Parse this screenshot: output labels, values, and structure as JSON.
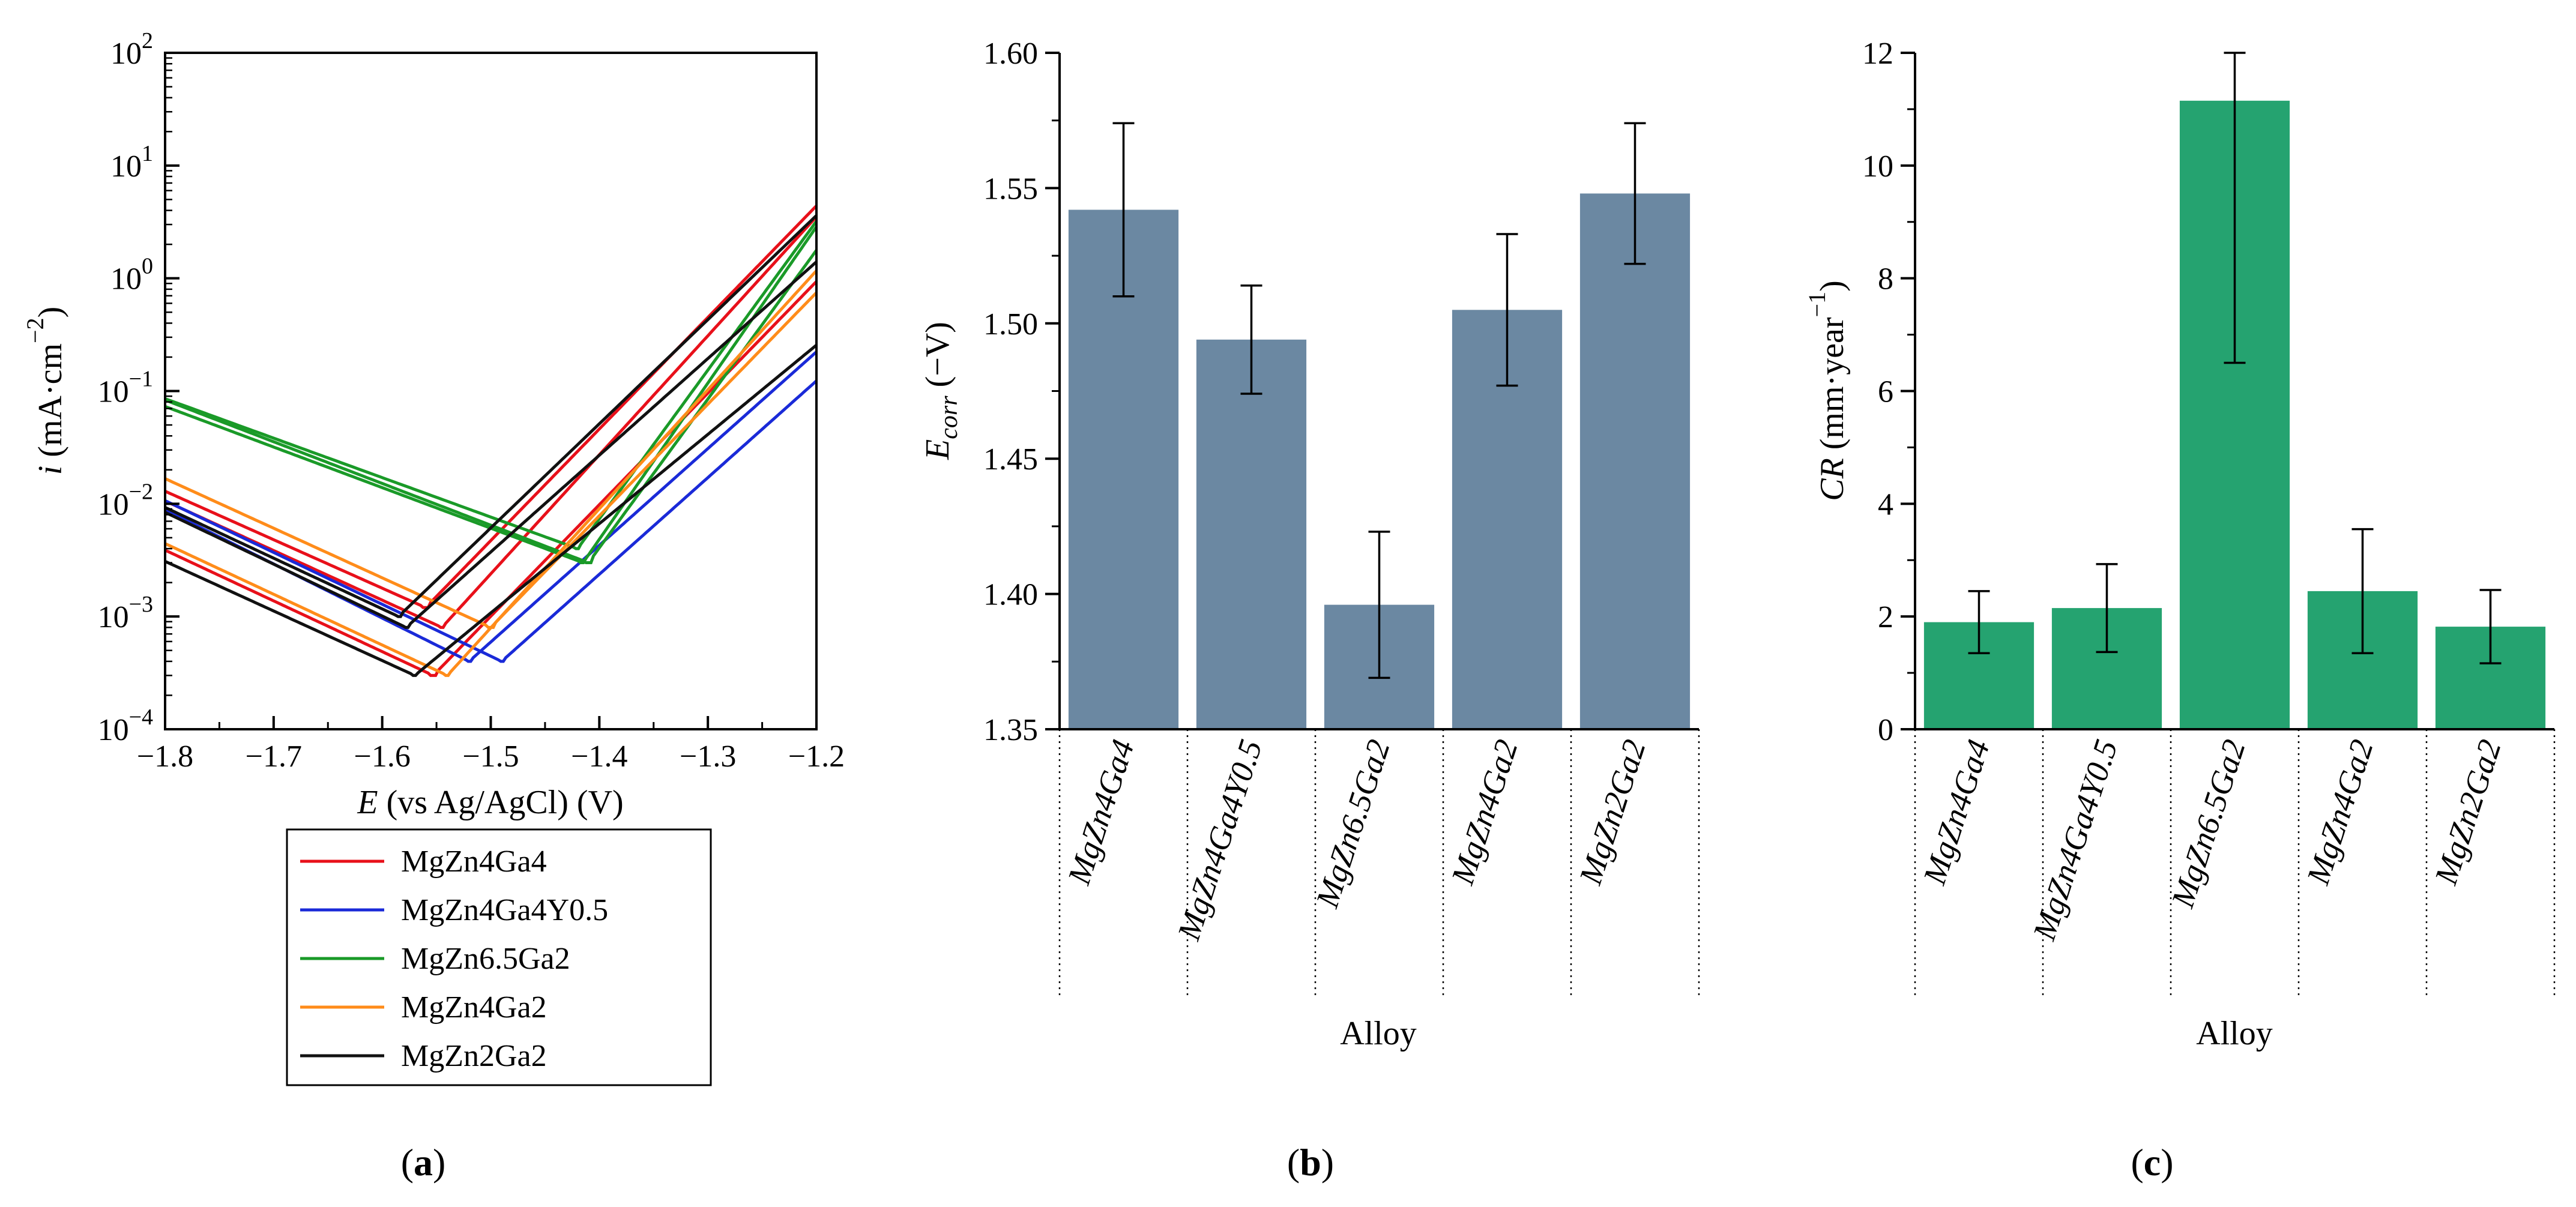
{
  "chart_data": [
    {
      "id": "a",
      "type": "line",
      "panel_label": "a",
      "xlabel_var": "E",
      "xlabel_rest": " (vs Ag/AgCl) (V)",
      "ylabel_var": "i",
      "ylabel_open": " (mA·cm",
      "ylabel_exp": "−2",
      "ylabel_close": ")",
      "xlim": [
        -1.8,
        -1.2
      ],
      "x_ticks": [
        -1.8,
        -1.7,
        -1.6,
        -1.5,
        -1.4,
        -1.3,
        -1.2
      ],
      "x_tick_labels": [
        "−1.8",
        "−1.7",
        "−1.6",
        "−1.5",
        "−1.4",
        "−1.3",
        "−1.2"
      ],
      "y_scale": "log",
      "ylim": [
        0.0001,
        100
      ],
      "y_tick_exps": [
        "−4",
        "−3",
        "−2",
        "−1",
        "0",
        "1",
        "2"
      ],
      "y_tick_base": "10",
      "legend_position": "below",
      "series": [
        {
          "name": "MgZn4Ga4",
          "color": "#e8101a",
          "curves": [
            {
              "ecorr": -1.553,
              "icorr": 0.0003,
              "ka": 3.0,
              "kc": 4.5,
              "imax": 30,
              "iend": 5.0
            },
            {
              "ecorr": -1.545,
              "icorr": 0.0008,
              "ka": 3.2,
              "kc": 4.4,
              "imax": 35,
              "iend": 4.0
            },
            {
              "ecorr": -1.56,
              "icorr": 0.0012,
              "ka": 3.0,
              "kc": 4.3,
              "imax": 40,
              "iend": 3.0
            }
          ]
        },
        {
          "name": "MgZn4Ga4Y0.5",
          "color": "#1a2ad8",
          "curves": [
            {
              "ecorr": -1.52,
              "icorr": 0.0004,
              "ka": 2.6,
              "kc": 4.8,
              "imax": 25,
              "iend": 6.0
            },
            {
              "ecorr": -1.49,
              "icorr": 0.0004,
              "ka": 2.6,
              "kc": 4.6,
              "imax": 20,
              "iend": 5.0
            }
          ]
        },
        {
          "name": "MgZn6.5Ga2",
          "color": "#1a9a28",
          "curves": [
            {
              "ecorr": -1.42,
              "icorr": 0.004,
              "ka": 4.0,
              "kc": 3.5,
              "imax": 18,
              "iend": 28
            },
            {
              "ecorr": -1.415,
              "icorr": 0.003,
              "ka": 4.2,
              "kc": 3.6,
              "imax": 20,
              "iend": 18
            },
            {
              "ecorr": -1.41,
              "icorr": 0.003,
              "ka": 4.0,
              "kc": 3.7,
              "imax": 17,
              "iend": 14
            }
          ]
        },
        {
          "name": "MgZn4Ga2",
          "color": "#ff8c1a",
          "curves": [
            {
              "ecorr": -1.54,
              "icorr": 0.0003,
              "ka": 3.2,
              "kc": 4.5,
              "imax": 45,
              "iend": 3.5
            },
            {
              "ecorr": -1.5,
              "icorr": 0.0008,
              "ka": 3.0,
              "kc": 4.4,
              "imax": 50,
              "iend": 4.0
            }
          ]
        },
        {
          "name": "MgZn2Ga2",
          "color": "#111111",
          "curves": [
            {
              "ecorr": -1.585,
              "icorr": 0.001,
              "ka": 2.8,
              "kc": 4.5,
              "imax": 25,
              "iend": 2.0
            },
            {
              "ecorr": -1.578,
              "icorr": 0.0008,
              "ka": 2.6,
              "kc": 4.6,
              "imax": 28,
              "iend": 1.6
            },
            {
              "ecorr": -1.57,
              "icorr": 0.0003,
              "ka": 2.4,
              "kc": 4.4,
              "imax": 22,
              "iend": 2.4
            }
          ]
        }
      ]
    },
    {
      "id": "b",
      "type": "bar",
      "panel_label": "b",
      "title": "",
      "xlabel": "Alloy",
      "ylabel_var": "E",
      "ylabel_sub": "corr",
      "ylabel_rest": " (−V)",
      "categories": [
        "MgZn4Ga4",
        "MgZn4Ga4Y0.5",
        "MgZn6.5Ga2",
        "MgZn4Ga2",
        "MgZn2Ga2"
      ],
      "values": [
        1.542,
        1.494,
        1.396,
        1.505,
        1.548
      ],
      "errors": [
        0.032,
        0.02,
        0.027,
        0.028,
        0.026
      ],
      "ylim": [
        1.35,
        1.6
      ],
      "y_ticks": [
        1.35,
        1.4,
        1.45,
        1.5,
        1.55,
        1.6
      ],
      "y_tick_labels": [
        "1.35",
        "1.40",
        "1.45",
        "1.50",
        "1.55",
        "1.60"
      ],
      "bar_color": "#6b88a2"
    },
    {
      "id": "c",
      "type": "bar",
      "panel_label": "c",
      "title": "",
      "xlabel": "Alloy",
      "ylabel_var": "CR",
      "ylabel_open": " (mm·year",
      "ylabel_exp": "−1",
      "ylabel_close": ")",
      "categories": [
        "MgZn4Ga4",
        "MgZn4Ga4Y0.5",
        "MgZn6.5Ga2",
        "MgZn4Ga2",
        "MgZn2Ga2"
      ],
      "values": [
        1.9,
        2.15,
        11.15,
        2.45,
        1.82
      ],
      "errors": [
        0.55,
        0.78,
        4.65,
        1.1,
        0.65
      ],
      "ylim": [
        0,
        12
      ],
      "y_ticks": [
        0,
        2,
        4,
        6,
        8,
        10,
        12
      ],
      "y_tick_labels": [
        "0",
        "2",
        "4",
        "6",
        "8",
        "10",
        "12"
      ],
      "bar_color": "#25a370"
    }
  ]
}
